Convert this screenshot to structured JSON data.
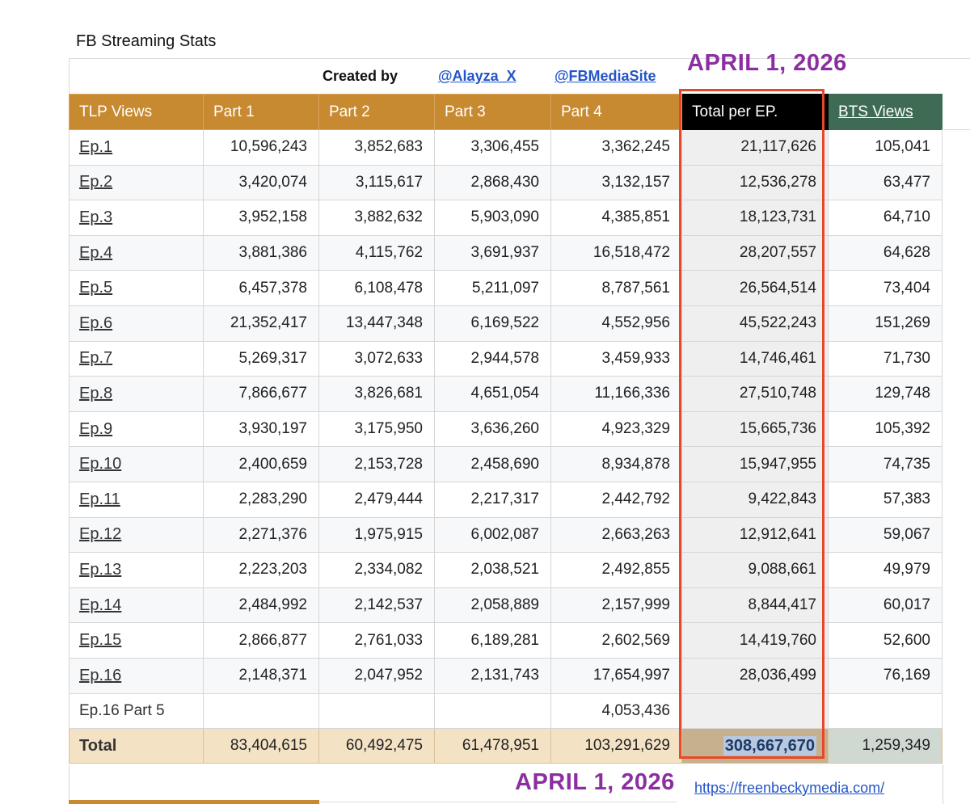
{
  "sheet": {
    "title": "FB Streaming Stats",
    "created_by": "Created by",
    "handle1": "@Alayza_X",
    "handle2": "@FBMediaSite",
    "date_label": "APRIL 1, 2026",
    "url": "https://freenbeckymedia.com/"
  },
  "table": {
    "headers": [
      "TLP Views",
      "Part 1",
      "Part 2",
      "Part 3",
      "Part 4",
      "Total per EP.",
      "BTS Views"
    ],
    "rows": [
      {
        "ep": "Ep.1",
        "p1": "10,596,243",
        "p2": "3,852,683",
        "p3": "3,306,455",
        "p4": "3,362,245",
        "total": "21,117,626",
        "bts": "105,041"
      },
      {
        "ep": "Ep.2",
        "p1": "3,420,074",
        "p2": "3,115,617",
        "p3": "2,868,430",
        "p4": "3,132,157",
        "total": "12,536,278",
        "bts": "63,477"
      },
      {
        "ep": "Ep.3",
        "p1": "3,952,158",
        "p2": "3,882,632",
        "p3": "5,903,090",
        "p4": "4,385,851",
        "total": "18,123,731",
        "bts": "64,710"
      },
      {
        "ep": "Ep.4",
        "p1": "3,881,386",
        "p2": "4,115,762",
        "p3": "3,691,937",
        "p4": "16,518,472",
        "total": "28,207,557",
        "bts": "64,628"
      },
      {
        "ep": "Ep.5",
        "p1": "6,457,378",
        "p2": "6,108,478",
        "p3": "5,211,097",
        "p4": "8,787,561",
        "total": "26,564,514",
        "bts": "73,404"
      },
      {
        "ep": "Ep.6",
        "p1": "21,352,417",
        "p2": "13,447,348",
        "p3": "6,169,522",
        "p4": "4,552,956",
        "total": "45,522,243",
        "bts": "151,269"
      },
      {
        "ep": "Ep.7",
        "p1": "5,269,317",
        "p2": "3,072,633",
        "p3": "2,944,578",
        "p4": "3,459,933",
        "total": "14,746,461",
        "bts": "71,730"
      },
      {
        "ep": "Ep.8",
        "p1": "7,866,677",
        "p2": "3,826,681",
        "p3": "4,651,054",
        "p4": "11,166,336",
        "total": "27,510,748",
        "bts": "129,748"
      },
      {
        "ep": "Ep.9",
        "p1": "3,930,197",
        "p2": "3,175,950",
        "p3": "3,636,260",
        "p4": "4,923,329",
        "total": "15,665,736",
        "bts": "105,392"
      },
      {
        "ep": "Ep.10",
        "p1": "2,400,659",
        "p2": "2,153,728",
        "p3": "2,458,690",
        "p4": "8,934,878",
        "total": "15,947,955",
        "bts": "74,735"
      },
      {
        "ep": "Ep.11",
        "p1": "2,283,290",
        "p2": "2,479,444",
        "p3": "2,217,317",
        "p4": "2,442,792",
        "total": "9,422,843",
        "bts": "57,383"
      },
      {
        "ep": "Ep.12",
        "p1": "2,271,376",
        "p2": "1,975,915",
        "p3": "6,002,087",
        "p4": "2,663,263",
        "total": "12,912,641",
        "bts": "59,067"
      },
      {
        "ep": "Ep.13",
        "p1": "2,223,203",
        "p2": "2,334,082",
        "p3": "2,038,521",
        "p4": "2,492,855",
        "total": "9,088,661",
        "bts": "49,979"
      },
      {
        "ep": "Ep.14",
        "p1": "2,484,992",
        "p2": "2,142,537",
        "p3": "2,058,889",
        "p4": "2,157,999",
        "total": "8,844,417",
        "bts": "60,017"
      },
      {
        "ep": "Ep.15",
        "p1": "2,866,877",
        "p2": "2,761,033",
        "p3": "6,189,281",
        "p4": "2,602,569",
        "total": "14,419,760",
        "bts": "52,600"
      },
      {
        "ep": "Ep.16",
        "p1": "2,148,371",
        "p2": "2,047,952",
        "p3": "2,131,743",
        "p4": "17,654,997",
        "total": "28,036,499",
        "bts": "76,169"
      },
      {
        "ep": "Ep.16 Part 5",
        "p1": "",
        "p2": "",
        "p3": "",
        "p4": "4,053,436",
        "total": "",
        "bts": ""
      }
    ],
    "total": {
      "label": "Total",
      "p1": "83,404,615",
      "p2": "60,492,475",
      "p3": "61,478,951",
      "p4": "103,291,629",
      "total": "308,667,670",
      "bts": "1,259,349"
    }
  },
  "colors": {
    "header_bg": "#c78a30",
    "total_header_bg": "#000000",
    "bts_header_bg": "#3f6b54",
    "total_row_bg": "#f4e2c4",
    "annotation_purple": "#8b2fa0",
    "highlight_red": "#e9472a",
    "link_blue": "#2355c8"
  }
}
